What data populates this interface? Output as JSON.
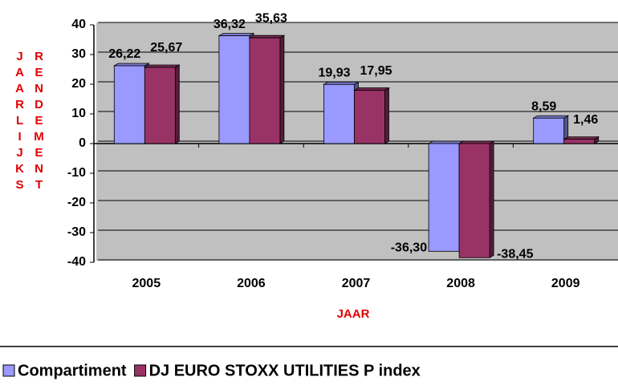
{
  "chart_data": {
    "type": "bar",
    "ylabel": [
      "JAARLIJKS",
      "RENDEMENT"
    ],
    "xlabel": "JAAR",
    "categories": [
      "2005",
      "2006",
      "2007",
      "2008",
      "2009"
    ],
    "series": [
      {
        "name": "Compartiment",
        "color": "#9999ff",
        "values": [
          26.22,
          36.32,
          19.93,
          -36.3,
          8.59
        ],
        "value_labels": [
          "26,22",
          "36,32",
          "19,93",
          "-36,30",
          "8,59"
        ]
      },
      {
        "name": "DJ EURO STOXX UTILITIES P index",
        "color": "#993366",
        "values": [
          25.67,
          35.63,
          17.95,
          -38.45,
          1.46
        ],
        "value_labels": [
          "25,67",
          "35,63",
          "17,95",
          "-38,45",
          "1,46"
        ]
      }
    ],
    "ylim": [
      -40,
      40
    ],
    "yticks": [
      -40,
      -30,
      -20,
      -10,
      0,
      10,
      20,
      30,
      40
    ],
    "grid": true,
    "legend": "bottom"
  }
}
